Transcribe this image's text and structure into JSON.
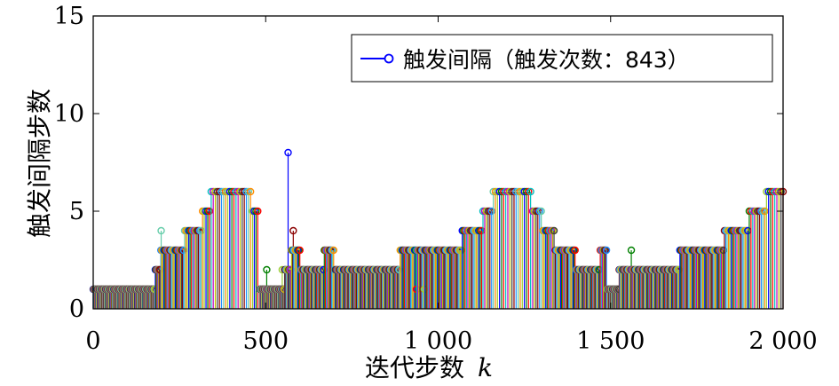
{
  "chart_data": {
    "type": "stem",
    "xlabel": "迭代步数",
    "xlabel_var": "k",
    "ylabel": "触发间隔步数",
    "xlim": [
      0,
      2000
    ],
    "ylim": [
      0,
      15
    ],
    "x_ticks": [
      0,
      500,
      1000,
      1500,
      2000
    ],
    "x_tick_labels": [
      "0",
      "500",
      "1 000",
      "1 500",
      "2 000"
    ],
    "y_ticks": [
      0,
      5,
      10,
      15
    ],
    "y_tick_labels": [
      "0",
      "5",
      "10",
      "15"
    ],
    "grid": false,
    "legend_position": "top-right",
    "legend": {
      "label": "触发间隔（触发次数：843）",
      "color": "#0000ff"
    },
    "trigger_count": 843,
    "interval_profile": [
      [
        0,
        1
      ],
      [
        180,
        2
      ],
      [
        195,
        3
      ],
      [
        240,
        3
      ],
      [
        265,
        4
      ],
      [
        315,
        5
      ],
      [
        340,
        6
      ],
      [
        460,
        5
      ],
      [
        480,
        1
      ],
      [
        540,
        1
      ],
      [
        555,
        2
      ],
      [
        575,
        3
      ],
      [
        600,
        2
      ],
      [
        670,
        3
      ],
      [
        700,
        2
      ],
      [
        890,
        3
      ],
      [
        1040,
        3
      ],
      [
        1070,
        4
      ],
      [
        1130,
        5
      ],
      [
        1160,
        6
      ],
      [
        1270,
        5
      ],
      [
        1300,
        4
      ],
      [
        1340,
        3
      ],
      [
        1400,
        2
      ],
      [
        1470,
        3
      ],
      [
        1490,
        1
      ],
      [
        1525,
        2
      ],
      [
        1700,
        3
      ],
      [
        1790,
        3
      ],
      [
        1830,
        4
      ],
      [
        1900,
        5
      ],
      [
        1950,
        6
      ],
      [
        2000,
        6
      ]
    ],
    "spikes": [
      {
        "x": 197,
        "y": 4
      },
      {
        "x": 222,
        "y": 3
      },
      {
        "x": 503,
        "y": 2
      },
      {
        "x": 548,
        "y": 2
      },
      {
        "x": 565,
        "y": 8
      },
      {
        "x": 580,
        "y": 4
      },
      {
        "x": 937,
        "y": 1
      },
      {
        "x": 960,
        "y": 1
      },
      {
        "x": 1560,
        "y": 3
      }
    ],
    "colors": [
      "#0000ff",
      "#008000",
      "#ff0000",
      "#00bfbf",
      "#bf00bf",
      "#bfbf00",
      "#404040",
      "#8b0000",
      "#1e90ff",
      "#66cdaa",
      "#ff8c00",
      "#9acd32"
    ]
  }
}
